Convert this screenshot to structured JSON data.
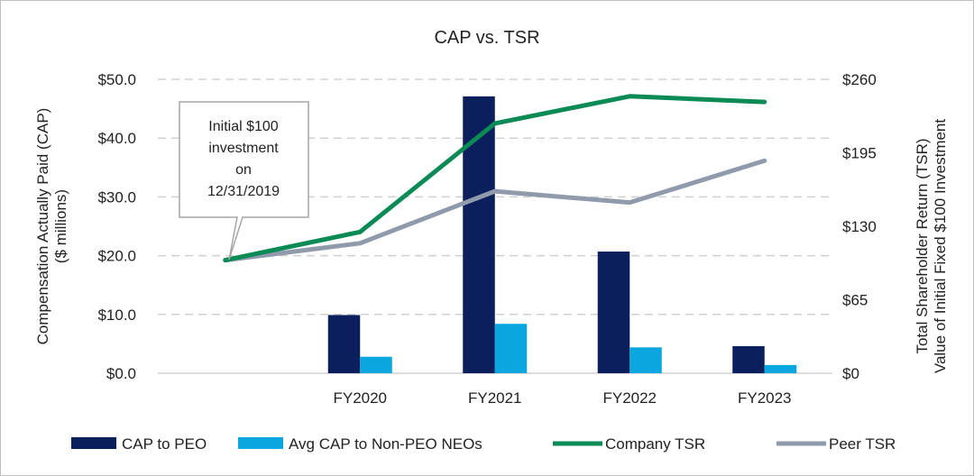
{
  "chart_data": {
    "type": "bar+line",
    "title": "CAP vs. TSR",
    "categories": [
      "",
      "FY2020",
      "FY2021",
      "FY2022",
      "FY2023"
    ],
    "ylabel_left": [
      "Compensation Actually Paid (CAP)",
      "($ millions)"
    ],
    "ylabel_right": [
      "Total Shareholder Return (TSR)",
      "Value of Initial Fixed $100 Investment"
    ],
    "ylim_left": [
      0,
      50
    ],
    "ylim_right": [
      0,
      260
    ],
    "yticks_left": [
      "$0.0",
      "$10.0",
      "$20.0",
      "$30.0",
      "$40.0",
      "$50.0"
    ],
    "yticks_right": [
      "$0",
      "$65",
      "$130",
      "$195",
      "$260"
    ],
    "grid": "horizontal dashed",
    "legend_position": "bottom",
    "bar_series": [
      {
        "name": "CAP to PEO",
        "color": "#0b1f5c",
        "values": [
          null,
          9.9,
          47.1,
          20.7,
          4.6
        ]
      },
      {
        "name": "Avg CAP to Non-PEO NEOs",
        "color": "#0aa6e0",
        "values": [
          null,
          2.8,
          8.4,
          4.4,
          1.4
        ]
      }
    ],
    "line_series": [
      {
        "name": "Company TSR",
        "color": "#0a8a55",
        "values": [
          100,
          125,
          221,
          245,
          240
        ]
      },
      {
        "name": "Peer TSR",
        "color": "#8f9aab",
        "values": [
          100,
          115,
          161,
          151,
          188
        ]
      }
    ],
    "annotation": [
      "Initial $100",
      "investment",
      "on",
      "12/31/2019"
    ]
  }
}
